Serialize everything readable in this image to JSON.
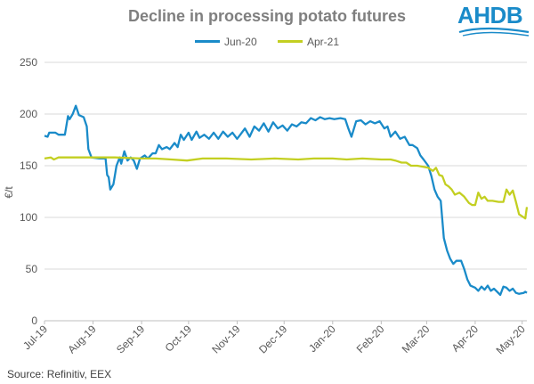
{
  "chart_data": {
    "type": "line",
    "title": "Decline in processing potato futures",
    "ylabel": "€/t",
    "xlabel": "",
    "ylim": [
      0,
      250
    ],
    "yticks": [
      0,
      50,
      100,
      150,
      200,
      250
    ],
    "xlim": [
      "2019-07-01",
      "2020-05-04"
    ],
    "xticks": [
      {
        "label": "Jul-19",
        "date": "2019-07-01"
      },
      {
        "label": "Aug-19",
        "date": "2019-08-01"
      },
      {
        "label": "Sep-19",
        "date": "2019-09-01"
      },
      {
        "label": "Oct-19",
        "date": "2019-10-01"
      },
      {
        "label": "Nov-19",
        "date": "2019-11-01"
      },
      {
        "label": "Dec-19",
        "date": "2019-12-01"
      },
      {
        "label": "Jan-20",
        "date": "2020-01-01"
      },
      {
        "label": "Feb-20",
        "date": "2020-02-01"
      },
      {
        "label": "Mar-20",
        "date": "2020-03-01"
      },
      {
        "label": "Apr-20",
        "date": "2020-04-01"
      },
      {
        "label": "May-20",
        "date": "2020-05-01"
      }
    ],
    "legend_position": "top",
    "grid": "horizontal",
    "series": [
      {
        "name": "Jun-20",
        "color": "#1a8bc9",
        "points": [
          [
            "2019-07-01",
            179
          ],
          [
            "2019-07-03",
            178
          ],
          [
            "2019-07-04",
            182
          ],
          [
            "2019-07-08",
            182
          ],
          [
            "2019-07-10",
            180
          ],
          [
            "2019-07-14",
            180
          ],
          [
            "2019-07-16",
            198
          ],
          [
            "2019-07-17",
            195
          ],
          [
            "2019-07-19",
            200
          ],
          [
            "2019-07-21",
            208
          ],
          [
            "2019-07-23",
            199
          ],
          [
            "2019-07-26",
            197
          ],
          [
            "2019-07-28",
            188
          ],
          [
            "2019-07-29",
            166
          ],
          [
            "2019-07-31",
            158
          ],
          [
            "2019-08-05",
            157
          ],
          [
            "2019-08-09",
            157
          ],
          [
            "2019-08-10",
            141
          ],
          [
            "2019-08-11",
            139
          ],
          [
            "2019-08-12",
            127
          ],
          [
            "2019-08-14",
            132
          ],
          [
            "2019-08-16",
            150
          ],
          [
            "2019-08-18",
            158
          ],
          [
            "2019-08-19",
            152
          ],
          [
            "2019-08-21",
            164
          ],
          [
            "2019-08-23",
            155
          ],
          [
            "2019-08-25",
            158
          ],
          [
            "2019-08-27",
            155
          ],
          [
            "2019-08-29",
            147
          ],
          [
            "2019-08-31",
            157
          ],
          [
            "2019-09-03",
            160
          ],
          [
            "2019-09-05",
            157
          ],
          [
            "2019-09-08",
            162
          ],
          [
            "2019-09-10",
            162
          ],
          [
            "2019-09-12",
            170
          ],
          [
            "2019-09-14",
            166
          ],
          [
            "2019-09-17",
            168
          ],
          [
            "2019-09-19",
            166
          ],
          [
            "2019-09-22",
            172
          ],
          [
            "2019-09-24",
            168
          ],
          [
            "2019-09-26",
            180
          ],
          [
            "2019-09-28",
            175
          ],
          [
            "2019-10-01",
            182
          ],
          [
            "2019-10-03",
            175
          ],
          [
            "2019-10-06",
            183
          ],
          [
            "2019-10-08",
            177
          ],
          [
            "2019-10-11",
            180
          ],
          [
            "2019-10-14",
            176
          ],
          [
            "2019-10-17",
            182
          ],
          [
            "2019-10-20",
            176
          ],
          [
            "2019-10-23",
            183
          ],
          [
            "2019-10-26",
            178
          ],
          [
            "2019-10-29",
            182
          ],
          [
            "2019-11-01",
            176
          ],
          [
            "2019-11-03",
            180
          ],
          [
            "2019-11-06",
            186
          ],
          [
            "2019-11-09",
            178
          ],
          [
            "2019-11-12",
            188
          ],
          [
            "2019-11-15",
            184
          ],
          [
            "2019-11-18",
            191
          ],
          [
            "2019-11-21",
            183
          ],
          [
            "2019-11-24",
            192
          ],
          [
            "2019-11-27",
            186
          ],
          [
            "2019-11-30",
            189
          ],
          [
            "2019-12-03",
            184
          ],
          [
            "2019-12-06",
            190
          ],
          [
            "2019-12-09",
            188
          ],
          [
            "2019-12-12",
            192
          ],
          [
            "2019-12-15",
            191
          ],
          [
            "2019-12-18",
            196
          ],
          [
            "2019-12-21",
            194
          ],
          [
            "2019-12-24",
            197
          ],
          [
            "2019-12-27",
            195
          ],
          [
            "2019-12-30",
            196
          ],
          [
            "2020-01-02",
            195
          ],
          [
            "2020-01-06",
            196
          ],
          [
            "2020-01-09",
            195
          ],
          [
            "2020-01-11",
            186
          ],
          [
            "2020-01-13",
            178
          ],
          [
            "2020-01-16",
            193
          ],
          [
            "2020-01-19",
            194
          ],
          [
            "2020-01-22",
            190
          ],
          [
            "2020-01-25",
            193
          ],
          [
            "2020-01-28",
            191
          ],
          [
            "2020-01-31",
            193
          ],
          [
            "2020-02-03",
            186
          ],
          [
            "2020-02-05",
            188
          ],
          [
            "2020-02-07",
            178
          ],
          [
            "2020-02-10",
            183
          ],
          [
            "2020-02-13",
            176
          ],
          [
            "2020-02-16",
            178
          ],
          [
            "2020-02-19",
            170
          ],
          [
            "2020-02-21",
            170
          ],
          [
            "2020-02-24",
            167
          ],
          [
            "2020-02-26",
            160
          ],
          [
            "2020-02-28",
            156
          ],
          [
            "2020-03-02",
            150
          ],
          [
            "2020-03-04",
            140
          ],
          [
            "2020-03-06",
            127
          ],
          [
            "2020-03-08",
            120
          ],
          [
            "2020-03-10",
            116
          ],
          [
            "2020-03-12",
            80
          ],
          [
            "2020-03-14",
            68
          ],
          [
            "2020-03-16",
            60
          ],
          [
            "2020-03-18",
            55
          ],
          [
            "2020-03-20",
            58
          ],
          [
            "2020-03-23",
            58
          ],
          [
            "2020-03-25",
            50
          ],
          [
            "2020-03-27",
            40
          ],
          [
            "2020-03-29",
            34
          ],
          [
            "2020-04-01",
            32
          ],
          [
            "2020-04-03",
            29
          ],
          [
            "2020-04-05",
            33
          ],
          [
            "2020-04-07",
            30
          ],
          [
            "2020-04-09",
            34
          ],
          [
            "2020-04-11",
            29
          ],
          [
            "2020-04-13",
            31
          ],
          [
            "2020-04-15",
            28
          ],
          [
            "2020-04-17",
            25
          ],
          [
            "2020-04-19",
            33
          ],
          [
            "2020-04-21",
            32
          ],
          [
            "2020-04-23",
            29
          ],
          [
            "2020-04-25",
            31
          ],
          [
            "2020-04-27",
            27
          ],
          [
            "2020-04-29",
            26
          ],
          [
            "2020-05-02",
            27
          ],
          [
            "2020-05-03",
            28
          ],
          [
            "2020-05-04",
            27
          ]
        ]
      },
      {
        "name": "Apr-21",
        "color": "#c3cf21",
        "points": [
          [
            "2019-07-01",
            157
          ],
          [
            "2019-07-05",
            158
          ],
          [
            "2019-07-07",
            156
          ],
          [
            "2019-07-10",
            158
          ],
          [
            "2019-07-20",
            158
          ],
          [
            "2019-08-01",
            158
          ],
          [
            "2019-08-15",
            158
          ],
          [
            "2019-09-01",
            157
          ],
          [
            "2019-09-10",
            157
          ],
          [
            "2019-09-20",
            156
          ],
          [
            "2019-09-30",
            155
          ],
          [
            "2019-10-10",
            157
          ],
          [
            "2019-10-25",
            157
          ],
          [
            "2019-11-10",
            156
          ],
          [
            "2019-11-25",
            157
          ],
          [
            "2019-12-10",
            156
          ],
          [
            "2019-12-20",
            157
          ],
          [
            "2020-01-01",
            157
          ],
          [
            "2020-01-10",
            156
          ],
          [
            "2020-01-20",
            157
          ],
          [
            "2020-02-01",
            156
          ],
          [
            "2020-02-07",
            156
          ],
          [
            "2020-02-10",
            155
          ],
          [
            "2020-02-14",
            153
          ],
          [
            "2020-02-17",
            153
          ],
          [
            "2020-02-20",
            150
          ],
          [
            "2020-02-24",
            150
          ],
          [
            "2020-02-28",
            149
          ],
          [
            "2020-03-02",
            148
          ],
          [
            "2020-03-05",
            145
          ],
          [
            "2020-03-07",
            148
          ],
          [
            "2020-03-09",
            141
          ],
          [
            "2020-03-11",
            140
          ],
          [
            "2020-03-13",
            132
          ],
          [
            "2020-03-15",
            130
          ],
          [
            "2020-03-17",
            127
          ],
          [
            "2020-03-19",
            122
          ],
          [
            "2020-03-22",
            124
          ],
          [
            "2020-03-25",
            120
          ],
          [
            "2020-03-28",
            114
          ],
          [
            "2020-03-30",
            112
          ],
          [
            "2020-04-01",
            112
          ],
          [
            "2020-04-03",
            124
          ],
          [
            "2020-04-05",
            118
          ],
          [
            "2020-04-07",
            120
          ],
          [
            "2020-04-09",
            116
          ],
          [
            "2020-04-12",
            116
          ],
          [
            "2020-04-16",
            115
          ],
          [
            "2020-04-19",
            115
          ],
          [
            "2020-04-21",
            127
          ],
          [
            "2020-04-23",
            122
          ],
          [
            "2020-04-25",
            126
          ],
          [
            "2020-04-27",
            115
          ],
          [
            "2020-04-29",
            103
          ],
          [
            "2020-05-01",
            101
          ],
          [
            "2020-05-03",
            99
          ],
          [
            "2020-05-04",
            110
          ]
        ]
      }
    ]
  },
  "legend": {
    "items": [
      {
        "label": "Jun-20",
        "color": "#1a8bc9"
      },
      {
        "label": "Apr-21",
        "color": "#c3cf21"
      }
    ]
  },
  "logo": {
    "text": "AHDB",
    "color": "#1a8bc9"
  },
  "source": "Source: Refinitiv, EEX"
}
